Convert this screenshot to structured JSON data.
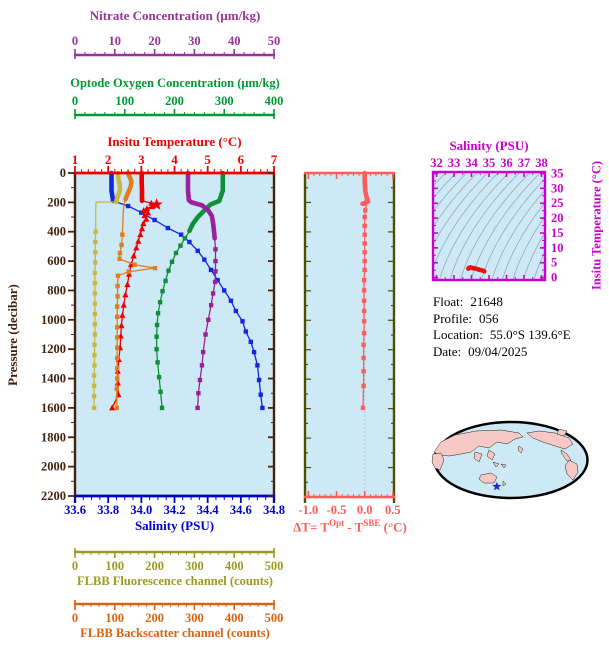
{
  "axes": {
    "nitrate": {
      "title": "Nitrate Concentration (μm/kg)",
      "color": "#993399",
      "min": 0,
      "max": 50,
      "minor": 2.5,
      "ticks": [
        0,
        10,
        20,
        30,
        40,
        50
      ]
    },
    "oxygen": {
      "title": "Optode Oxygen Concentration (μm/kg)",
      "color": "#009933",
      "min": 0,
      "max": 400,
      "minor": 20,
      "ticks": [
        0,
        100,
        200,
        300,
        400
      ]
    },
    "temperature": {
      "title": "Insitu Temperature (°C)",
      "color": "#EE0000",
      "min": 1,
      "max": 7,
      "minor": 0.2,
      "ticks": [
        1,
        2,
        3,
        4,
        5,
        6,
        7
      ]
    },
    "pressure": {
      "title": "Pressure (decibar)",
      "color": "#44220E",
      "min": 0,
      "max": 2200,
      "minor": 100,
      "major": 200
    },
    "salinity": {
      "title": "Salinity (PSU)",
      "color": "#0000CC",
      "min": 33.6,
      "max": 34.8,
      "minor": 0.05,
      "ticks": [
        "33.6",
        "33.8",
        "34.0",
        "34.2",
        "34.4",
        "34.6",
        "34.8"
      ]
    },
    "fluorescence": {
      "title": "FLBB Fluorescence channel (counts)",
      "color": "#9B9B20",
      "min": 0,
      "max": 500,
      "minor": 20,
      "ticks": [
        0,
        100,
        200,
        300,
        400,
        500
      ]
    },
    "backscatter": {
      "title": "FLBB Backscatter channel (counts)",
      "color": "#D96311",
      "min": 0,
      "max": 500,
      "minor": 20,
      "ticks": [
        0,
        100,
        200,
        300,
        400,
        500
      ]
    },
    "delta_t": {
      "title_prefix": "ΔT= T",
      "sup1": "Opt",
      "mid": " - T",
      "sup2": "SBE",
      "suffix": " (°C)",
      "color": "#FF5C5C",
      "side_color": "#4F4F00",
      "min": -1.06,
      "max": 0.52,
      "minor": 0.1,
      "ticks": [
        "-1.0",
        "-0.5",
        "0.0",
        "0.5"
      ]
    },
    "ts_salinity": {
      "title": "Salinity (PSU)",
      "color": "#CC00CC",
      "min": 31.8,
      "max": 38.2,
      "minor": 0.5,
      "ticks": [
        32,
        33,
        34,
        35,
        36,
        37,
        38
      ]
    },
    "ts_temperature": {
      "title": "Insitu Temperature (°C)",
      "color": "#CC00CC",
      "min": -0.8,
      "max": 35.5,
      "minor": 2.5,
      "ticks": [
        0,
        5,
        10,
        15,
        20,
        25,
        30,
        35
      ]
    }
  },
  "plot_background": "#CDE9F6",
  "float_info": {
    "rows": [
      {
        "label": "Float:",
        "value": "21648"
      },
      {
        "label": "Profile:",
        "value": "056"
      },
      {
        "label": "Location:",
        "value": "55.0°S  139.6°E"
      },
      {
        "label": "Date:",
        "value": "09/04/2025"
      }
    ]
  },
  "map": {
    "colors": {
      "ocean": "#CDE9F6",
      "land": "#F7C9C4",
      "outline": "#000000",
      "star": "#2222DD"
    },
    "marker_note": "float position star south of Australia"
  },
  "chart_data": [
    {
      "type": "line",
      "title": "Float vertical profiles",
      "y_axis": {
        "label": "Pressure (decibar)",
        "range": [
          0,
          2200
        ],
        "inverted": true
      },
      "series": [
        {
          "name": "Salinity (PSU)",
          "axis": "salinity",
          "color": "#1526DF",
          "marker": "square",
          "thick_until": 205,
          "marker_from": 220,
          "points": [
            [
              0,
              33.82
            ],
            [
              60,
              33.82
            ],
            [
              120,
              33.82
            ],
            [
              190,
              33.83
            ],
            [
              225,
              33.92
            ],
            [
              270,
              34.0
            ],
            [
              320,
              34.08
            ],
            [
              375,
              34.16
            ],
            [
              420,
              34.24
            ],
            [
              470,
              34.29
            ],
            [
              530,
              34.34
            ],
            [
              590,
              34.38
            ],
            [
              660,
              34.42
            ],
            [
              730,
              34.46
            ],
            [
              800,
              34.5
            ],
            [
              870,
              34.54
            ],
            [
              940,
              34.57
            ],
            [
              1010,
              34.61
            ],
            [
              1080,
              34.63
            ],
            [
              1150,
              34.66
            ],
            [
              1220,
              34.68
            ],
            [
              1310,
              34.7
            ],
            [
              1410,
              34.71
            ],
            [
              1510,
              34.72
            ],
            [
              1600,
              34.73
            ]
          ]
        },
        {
          "name": "Insitu Temperature (°C)",
          "axis": "temperature",
          "color": "#EE0000",
          "marker": "triangle",
          "thick_until": 196,
          "marker_from": 200,
          "points": [
            [
              0,
              3.01
            ],
            [
              60,
              3.01
            ],
            [
              120,
              3.02
            ],
            [
              190,
              3.02
            ],
            [
              205,
              3.3
            ],
            [
              215,
              3.44
            ],
            [
              228,
              3.32
            ],
            [
              242,
              3.17
            ],
            [
              256,
              3.07
            ],
            [
              272,
              3.2
            ],
            [
              290,
              3.1
            ],
            [
              315,
              3.15
            ],
            [
              345,
              3.06
            ],
            [
              380,
              3.02
            ],
            [
              420,
              2.97
            ],
            [
              465,
              2.91
            ],
            [
              510,
              2.85
            ],
            [
              565,
              2.77
            ],
            [
              625,
              2.69
            ],
            [
              690,
              2.63
            ],
            [
              760,
              2.58
            ],
            [
              830,
              2.52
            ],
            [
              900,
              2.47
            ],
            [
              970,
              2.43
            ],
            [
              1040,
              2.4
            ],
            [
              1110,
              2.38
            ],
            [
              1190,
              2.36
            ],
            [
              1270,
              2.32
            ],
            [
              1350,
              2.29
            ],
            [
              1430,
              2.29
            ],
            [
              1510,
              2.31
            ],
            [
              1600,
              2.12
            ]
          ]
        },
        {
          "name": "Optode Oxygen Concentration (μm/kg)",
          "axis": "oxygen",
          "color": "#0E9038",
          "marker": "square",
          "thick_until": 430,
          "marker_from": 440,
          "points": [
            [
              0,
              297
            ],
            [
              60,
              297
            ],
            [
              120,
              297
            ],
            [
              190,
              290
            ],
            [
              215,
              272
            ],
            [
              252,
              261
            ],
            [
              300,
              247
            ],
            [
              345,
              237
            ],
            [
              395,
              230
            ],
            [
              445,
              221
            ],
            [
              495,
              212
            ],
            [
              545,
              203
            ],
            [
              605,
              195
            ],
            [
              665,
              188
            ],
            [
              735,
              182
            ],
            [
              805,
              176
            ],
            [
              880,
              171
            ],
            [
              955,
              167
            ],
            [
              1035,
              165
            ],
            [
              1115,
              164
            ],
            [
              1200,
              164
            ],
            [
              1290,
              166
            ],
            [
              1390,
              169
            ],
            [
              1490,
              172
            ],
            [
              1600,
              175
            ]
          ]
        },
        {
          "name": "Nitrate Concentration (μm/kg)",
          "axis": "nitrate",
          "color": "#992299",
          "marker": "square",
          "thick_until": 460,
          "marker_from": 480,
          "points": [
            [
              0,
              28.4
            ],
            [
              60,
              28.4
            ],
            [
              120,
              28.4
            ],
            [
              185,
              28.6
            ],
            [
              200,
              29.3
            ],
            [
              220,
              31.9
            ],
            [
              252,
              33.4
            ],
            [
              293,
              34.4
            ],
            [
              341,
              34.7
            ],
            [
              390,
              34.9
            ],
            [
              445,
              35.1
            ],
            [
              520,
              35.3
            ],
            [
              600,
              35.3
            ],
            [
              670,
              35.3
            ],
            [
              742,
              35.2
            ],
            [
              820,
              34.7
            ],
            [
              900,
              34.2
            ],
            [
              1000,
              33.5
            ],
            [
              1100,
              32.8
            ],
            [
              1220,
              32.2
            ],
            [
              1310,
              31.9
            ],
            [
              1410,
              31.4
            ],
            [
              1500,
              31.0
            ],
            [
              1600,
              30.8
            ]
          ]
        },
        {
          "name": "FLBB Fluorescence channel (counts)",
          "axis": "fluorescence",
          "color": "#C8B843",
          "marker": "square",
          "thick_until": 197,
          "marker_from": 400,
          "points": [
            [
              0,
              108
            ],
            [
              40,
              109
            ],
            [
              80,
              112
            ],
            [
              110,
              113
            ],
            [
              140,
              110
            ],
            [
              170,
              106
            ],
            [
              190,
              104
            ],
            [
              197,
              104
            ],
            [
              198,
              53
            ],
            [
              260,
              52
            ],
            [
              330,
              52
            ],
            [
              400,
              52
            ],
            [
              470,
              51
            ],
            [
              540,
              51
            ],
            [
              610,
              51
            ],
            [
              680,
              50
            ],
            [
              750,
              50
            ],
            [
              820,
              50
            ],
            [
              890,
              50
            ],
            [
              960,
              50
            ],
            [
              1030,
              50
            ],
            [
              1100,
              50
            ],
            [
              1170,
              49
            ],
            [
              1240,
              49
            ],
            [
              1310,
              49
            ],
            [
              1380,
              48
            ],
            [
              1450,
              48
            ],
            [
              1520,
              48
            ],
            [
              1600,
              48
            ]
          ]
        },
        {
          "name": "FLBB Backscatter channel (counts)",
          "axis": "backscatter",
          "color": "#E07D1E",
          "marker": "square",
          "thick_until": 205,
          "marker_from": 400,
          "points": [
            [
              0,
              133
            ],
            [
              30,
              138
            ],
            [
              60,
              142
            ],
            [
              90,
              140
            ],
            [
              120,
              136
            ],
            [
              150,
              131
            ],
            [
              180,
              127
            ],
            [
              210,
              123
            ],
            [
              280,
              121
            ],
            [
              350,
              120
            ],
            [
              420,
              119
            ],
            [
              490,
              117
            ],
            [
              545,
              113
            ],
            [
              585,
              112
            ],
            [
              625,
              150
            ],
            [
              648,
              201
            ],
            [
              672,
              135
            ],
            [
              700,
              108
            ],
            [
              770,
              107
            ],
            [
              840,
              107
            ],
            [
              910,
              106
            ],
            [
              980,
              106
            ],
            [
              1050,
              106
            ],
            [
              1120,
              106
            ],
            [
              1190,
              106
            ],
            [
              1260,
              106
            ],
            [
              1330,
              106
            ],
            [
              1400,
              106
            ],
            [
              1470,
              105
            ],
            [
              1600,
              105
            ]
          ]
        }
      ],
      "annotations": {
        "temperature_max_star": {
          "temperature": 3.46,
          "pressure": 215,
          "color": "#EE0000"
        }
      }
    },
    {
      "type": "line",
      "title": "ΔT= TOpt - TSBE (°C) vs pressure",
      "series": [
        {
          "name": "ΔT",
          "axis": "delta_t",
          "color": "#FF5C5C",
          "marker": "square",
          "thick_until": 210,
          "marker_from": 230,
          "points": [
            [
              0,
              0.0
            ],
            [
              60,
              0.0
            ],
            [
              120,
              0.01
            ],
            [
              160,
              0.03
            ],
            [
              195,
              0.06
            ],
            [
              210,
              -0.04
            ],
            [
              225,
              0.03
            ],
            [
              255,
              0.01
            ],
            [
              300,
              0.0
            ],
            [
              360,
              0.0
            ],
            [
              420,
              0.0
            ],
            [
              480,
              0.0
            ],
            [
              540,
              0.0
            ],
            [
              600,
              0.0
            ],
            [
              660,
              0.0
            ],
            [
              730,
              -0.01
            ],
            [
              800,
              -0.01
            ],
            [
              870,
              -0.01
            ],
            [
              940,
              -0.01
            ],
            [
              1010,
              -0.01
            ],
            [
              1090,
              -0.01
            ],
            [
              1170,
              -0.02
            ],
            [
              1260,
              -0.02
            ],
            [
              1350,
              -0.02
            ],
            [
              1450,
              -0.02
            ],
            [
              1600,
              -0.03
            ]
          ]
        }
      ]
    },
    {
      "type": "scatter",
      "title": "T-S diagram",
      "x_label": "Salinity (PSU)",
      "y_label": "Insitu Temperature (°C)",
      "curve_color": "#E8100C",
      "background_contours": "unlabeled isopycnal curves",
      "points": [
        [
          33.82,
          3.0
        ],
        [
          33.86,
          3.3
        ],
        [
          33.95,
          3.42
        ],
        [
          34.02,
          3.3
        ],
        [
          34.1,
          3.15
        ],
        [
          34.2,
          3.05
        ],
        [
          34.28,
          2.95
        ],
        [
          34.36,
          2.8
        ],
        [
          34.44,
          2.65
        ],
        [
          34.52,
          2.52
        ],
        [
          34.6,
          2.42
        ],
        [
          34.66,
          2.33
        ],
        [
          34.7,
          2.25
        ],
        [
          34.73,
          2.1
        ]
      ]
    }
  ]
}
